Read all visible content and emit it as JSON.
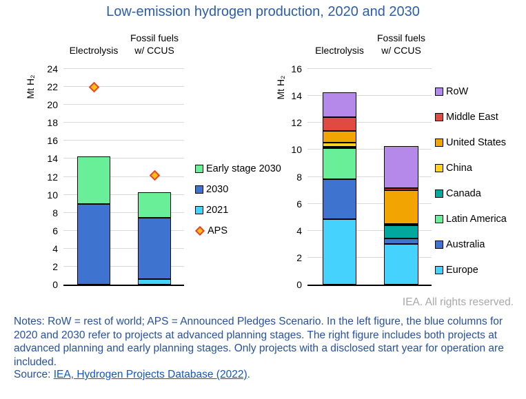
{
  "title": "Low-emission hydrogen production, 2020 and 2030",
  "footer": {
    "rights": "IEA. All rights reserved.",
    "notes": "Notes: RoW = rest of world; APS = Announced Pledges Scenario. In the left figure, the blue columns for 2020 and 2030 refer to projects at advanced planning stages. The right figure includes both projects at advanced planning and early planning stages. Only projects with a disclosed start year for operation are included.",
    "source_label": "Source: ",
    "source_link": "IEA, Hydrogen Projects Database (2022)",
    "source_suffix": "."
  },
  "colors": {
    "title_text": "#2B5CAD",
    "notes_text": "#26519E",
    "link_text": "#1155CC",
    "rights_text": "#A8A8A8",
    "gridline": "#D9D9D9",
    "bar_border": "#000000"
  },
  "chart_data": [
    {
      "type": "bar",
      "stacked": true,
      "ylabel": "Mt H₂",
      "ylim": [
        0,
        24
      ],
      "ytick_step": 2,
      "grid": true,
      "legend_position": "right",
      "categories": [
        "Electrolysis",
        "Fossil fuels w/ CCUS"
      ],
      "column_headers": [
        "Electrolysis",
        "Fossil fuels\nw/ CCUS"
      ],
      "series": [
        {
          "name": "2021",
          "color": "#45D2FC",
          "values": [
            0,
            0.6
          ]
        },
        {
          "name": "2030",
          "color": "#3E74D0",
          "values": [
            9.0,
            6.85
          ]
        },
        {
          "name": "Early stage 2030",
          "color": "#69EF97",
          "values": [
            5.3,
            2.85
          ]
        },
        {
          "name": "APS",
          "type": "marker",
          "color": "#FFC010",
          "border_color": "#E8432D",
          "values": [
            22,
            12.2
          ]
        }
      ],
      "legend_order": [
        "Early stage 2030",
        "2030",
        "2021",
        "APS"
      ]
    },
    {
      "type": "bar",
      "stacked": true,
      "ylabel": "Mt H₂",
      "ylim": [
        0,
        16
      ],
      "ytick_step": 2,
      "grid": true,
      "legend_position": "right",
      "categories": [
        "Electrolysis",
        "Fossil fuels w/ CCUS"
      ],
      "column_headers": [
        "Electrolysis",
        "Fossil fuels\nw/ CCUS"
      ],
      "series": [
        {
          "name": "Europe",
          "color": "#45D2FC",
          "values": [
            4.85,
            3.0
          ]
        },
        {
          "name": "Australia",
          "color": "#3E74D0",
          "values": [
            2.95,
            0.4
          ]
        },
        {
          "name": "Latin America",
          "color": "#69EF97",
          "values": [
            2.3,
            0
          ]
        },
        {
          "name": "Canada",
          "color": "#01A89E",
          "values": [
            0.1,
            1.0
          ]
        },
        {
          "name": "China",
          "color": "#FFD21D",
          "values": [
            0.35,
            0.1
          ]
        },
        {
          "name": "United States",
          "color": "#F1A402",
          "values": [
            0.85,
            2.5
          ]
        },
        {
          "name": "Middle East",
          "color": "#E04A41",
          "values": [
            1.0,
            0.15
          ]
        },
        {
          "name": "RoW",
          "color": "#B489E9",
          "values": [
            1.85,
            3.15
          ]
        }
      ],
      "legend_order": [
        "RoW",
        "Middle East",
        "United States",
        "China",
        "Canada",
        "Latin America",
        "Australia",
        "Europe"
      ]
    }
  ]
}
